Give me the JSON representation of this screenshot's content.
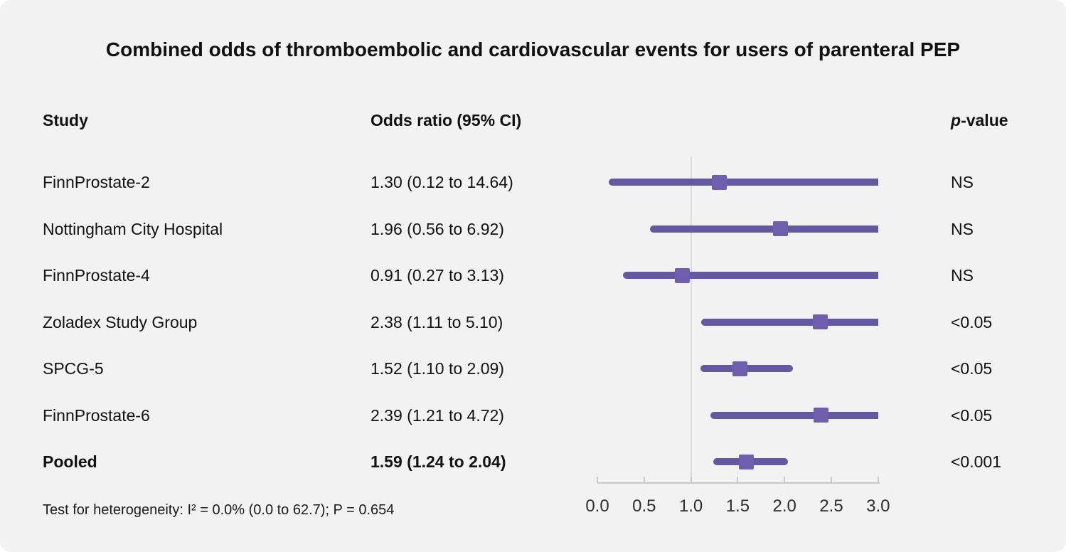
{
  "title": "Combined odds of thromboembolic and cardiovascular events for users of parenteral PEP",
  "table": {
    "headers": {
      "study": "Study",
      "odds_ratio": "Odds ratio (95% CI)",
      "p_italic": "p",
      "p_rest": "-value"
    }
  },
  "footnote": "Test for heterogeneity: I² = 0.0% (0.0 to 62.7); P = 0.654",
  "colors": {
    "background": "#f2f2f2",
    "ci_line": "#6458a2",
    "marker": "#6e5ead",
    "axis": "#c9c9c9",
    "reference_line": "#d9dce0",
    "text": "#111111"
  },
  "chart_data": {
    "type": "forest",
    "title": "Combined odds of thromboembolic and cardiovascular events for users of parenteral PEP",
    "xlabel": "",
    "legend": "none",
    "axis": {
      "min": 0.0,
      "max": 3.0,
      "tick_step": 0.5,
      "tick_labels": [
        "0.0",
        "0.5",
        "1.0",
        "1.5",
        "2.0",
        "2.5",
        "3.0"
      ],
      "reference_line": 1.0,
      "clip_max": 3.0
    },
    "rows": [
      {
        "study": "FinnProstate-2",
        "or_text": "1.30 (0.12 to 14.64)",
        "or": 1.3,
        "ci_low": 0.12,
        "ci_high": 14.64,
        "p": "NS",
        "bold": false
      },
      {
        "study": "Nottingham City Hospital",
        "or_text": "1.96 (0.56 to 6.92)",
        "or": 1.96,
        "ci_low": 0.56,
        "ci_high": 6.92,
        "p": "NS",
        "bold": false
      },
      {
        "study": "FinnProstate-4",
        "or_text": "0.91 (0.27 to 3.13)",
        "or": 0.91,
        "ci_low": 0.27,
        "ci_high": 3.13,
        "p": "NS",
        "bold": false
      },
      {
        "study": "Zoladex Study Group",
        "or_text": "2.38 (1.11 to 5.10)",
        "or": 2.38,
        "ci_low": 1.11,
        "ci_high": 5.1,
        "p": "<0.05",
        "bold": false
      },
      {
        "study": "SPCG-5",
        "or_text": "1.52 (1.10 to 2.09)",
        "or": 1.52,
        "ci_low": 1.1,
        "ci_high": 2.09,
        "p": "<0.05",
        "bold": false
      },
      {
        "study": "FinnProstate-6",
        "or_text": "2.39 (1.21 to 4.72)",
        "or": 2.39,
        "ci_low": 1.21,
        "ci_high": 4.72,
        "p": "<0.05",
        "bold": false
      },
      {
        "study": "Pooled",
        "or_text": "1.59 (1.24 to 2.04)",
        "or": 1.59,
        "ci_low": 1.24,
        "ci_high": 2.04,
        "p": "<0.001",
        "bold": true
      }
    ],
    "footnote": "Test for heterogeneity: I² = 0.0% (0.0 to 62.7); P = 0.654"
  }
}
